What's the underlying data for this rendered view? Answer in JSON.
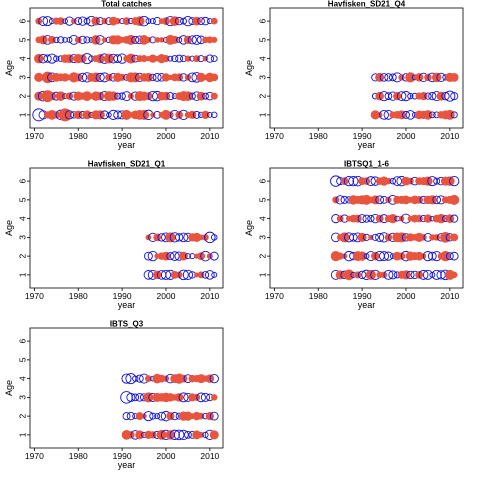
{
  "chart_data": [
    {
      "type": "scatter",
      "title": "Total catches",
      "xlabel": "year",
      "ylabel": "Age",
      "xlim": [
        1969,
        2013
      ],
      "ylim": [
        0.3,
        6.7
      ],
      "xticks": [
        1970,
        1980,
        1990,
        2000,
        2010
      ],
      "yticks": [
        1,
        2,
        3,
        4,
        5,
        6
      ],
      "year_range": [
        1971,
        2011
      ],
      "ages": [
        1,
        2,
        3,
        4,
        5,
        6
      ],
      "residual_colors": {
        "positive": "#e8553f",
        "negative": "#1010d8"
      },
      "highlights": [
        {
          "year": 1971,
          "age": 1,
          "size": 0.85,
          "sign": -1
        },
        {
          "year": 1977,
          "age": 1,
          "size": 0.9,
          "sign": 1
        },
        {
          "year": 1973,
          "age": 2,
          "size": 0.75,
          "sign": 1
        },
        {
          "year": 1972,
          "age": 2,
          "size": 0.55,
          "sign": -1
        },
        {
          "year": 1973,
          "age": 3,
          "size": 0.7,
          "sign": 1
        },
        {
          "year": 1982,
          "age": 4,
          "size": 0.6,
          "sign": -1
        },
        {
          "year": 1974,
          "age": 4,
          "size": 0.5,
          "sign": -1
        },
        {
          "year": 1995,
          "age": 6,
          "size": 0.55,
          "sign": -1
        },
        {
          "year": 1973,
          "age": 6,
          "size": 0.5,
          "sign": -1
        },
        {
          "year": 1973,
          "age": 5,
          "size": 0.45,
          "sign": -1
        }
      ]
    },
    {
      "type": "scatter",
      "title": "Havfisken_SD21_Q4",
      "xlabel": "year",
      "ylabel": "Age",
      "xlim": [
        1969,
        2013
      ],
      "ylim": [
        0.3,
        6.7
      ],
      "xticks": [
        1970,
        1980,
        1990,
        2000,
        2010
      ],
      "yticks": [
        1,
        2,
        3,
        4,
        5,
        6
      ],
      "year_range": [
        1993,
        2011
      ],
      "ages": [
        1,
        2,
        3
      ],
      "residual_colors": {
        "positive": "#e8553f",
        "negative": "#1010d8"
      },
      "highlights": [
        {
          "year": 2010,
          "age": 2,
          "size": 0.6,
          "sign": -1
        },
        {
          "year": 2001,
          "age": 3,
          "size": 0.55,
          "sign": 1
        },
        {
          "year": 2006,
          "age": 3,
          "size": 0.45,
          "sign": -1
        }
      ]
    },
    {
      "type": "scatter",
      "title": "Havfisken_SD21_Q1",
      "xlabel": "year",
      "ylabel": "Age",
      "xlim": [
        1969,
        2013
      ],
      "ylim": [
        0.3,
        6.7
      ],
      "xticks": [
        1970,
        1980,
        1990,
        2000,
        2010
      ],
      "yticks": [
        1,
        2,
        3,
        4,
        5,
        6
      ],
      "year_range": [
        1996,
        2011
      ],
      "ages": [
        1,
        2,
        3
      ],
      "residual_colors": {
        "positive": "#e8553f",
        "negative": "#1010d8"
      },
      "highlights": [
        {
          "year": 2010,
          "age": 3,
          "size": 0.65,
          "sign": -1
        },
        {
          "year": 2009,
          "age": 2,
          "size": 0.55,
          "sign": -1
        },
        {
          "year": 2000,
          "age": 1,
          "size": 0.5,
          "sign": -1
        },
        {
          "year": 2010,
          "age": 1,
          "size": 0.45,
          "sign": -1
        }
      ]
    },
    {
      "type": "scatter",
      "title": "IBTSQ1_1-6",
      "xlabel": "year",
      "ylabel": "Age",
      "xlim": [
        1969,
        2013
      ],
      "ylim": [
        0.3,
        6.7
      ],
      "xticks": [
        1970,
        1980,
        1990,
        2000,
        2010
      ],
      "yticks": [
        1,
        2,
        3,
        4,
        5,
        6
      ],
      "year_range": [
        1984,
        2011
      ],
      "ages": [
        1,
        2,
        3,
        4,
        5,
        6
      ],
      "residual_colors": {
        "positive": "#e8553f",
        "negative": "#1010d8"
      },
      "highlights": [
        {
          "year": 1984,
          "age": 6,
          "size": 0.65,
          "sign": -1
        },
        {
          "year": 1989,
          "age": 6,
          "size": 0.55,
          "sign": -1
        },
        {
          "year": 2009,
          "age": 3,
          "size": 0.6,
          "sign": 1
        },
        {
          "year": 2009,
          "age": 2,
          "size": 0.55,
          "sign": 1
        },
        {
          "year": 1987,
          "age": 1,
          "size": 0.6,
          "sign": 1
        },
        {
          "year": 2007,
          "age": 1,
          "size": 0.5,
          "sign": -1
        },
        {
          "year": 2006,
          "age": 6,
          "size": 0.5,
          "sign": -1
        }
      ]
    },
    {
      "type": "scatter",
      "title": "IBTS_Q3",
      "xlabel": "year",
      "ylabel": "Age",
      "xlim": [
        1969,
        2013
      ],
      "ylim": [
        0.3,
        6.7
      ],
      "xticks": [
        1970,
        1980,
        1990,
        2000,
        2010
      ],
      "yticks": [
        1,
        2,
        3,
        4,
        5,
        6
      ],
      "year_range": [
        1991,
        2011
      ],
      "ages": [
        1,
        2,
        3,
        4
      ],
      "residual_colors": {
        "positive": "#e8553f",
        "negative": "#1010d8"
      },
      "highlights": [
        {
          "year": 1991,
          "age": 3,
          "size": 0.8,
          "sign": -1
        },
        {
          "year": 1992,
          "age": 4,
          "size": 0.6,
          "sign": -1
        },
        {
          "year": 1991,
          "age": 4,
          "size": 0.5,
          "sign": -1
        },
        {
          "year": 2003,
          "age": 4,
          "size": 0.55,
          "sign": 1
        },
        {
          "year": 2003,
          "age": 1,
          "size": 0.55,
          "sign": -1
        },
        {
          "year": 1996,
          "age": 2,
          "size": 0.5,
          "sign": -1
        }
      ]
    }
  ]
}
